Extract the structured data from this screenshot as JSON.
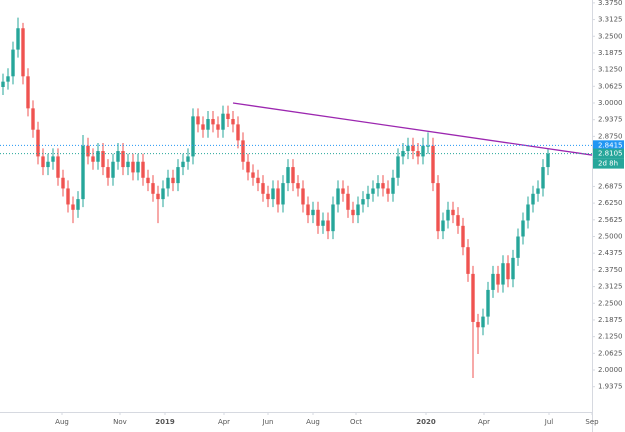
{
  "chart_data": {
    "type": "candlestick",
    "open": [
      3.06,
      3.08,
      3.1,
      3.2,
      3.28,
      3.1,
      2.98,
      2.9,
      2.8,
      2.76,
      2.78,
      2.8,
      2.72,
      2.68,
      2.62,
      2.6,
      2.64,
      2.84,
      2.8,
      2.78,
      2.82,
      2.76,
      2.72,
      2.78,
      2.82,
      2.76,
      2.78,
      2.74,
      2.78,
      2.72,
      2.7,
      2.66,
      2.64,
      2.68,
      2.72,
      2.7,
      2.76,
      2.78,
      2.8,
      2.95,
      2.92,
      2.9,
      2.94,
      2.92,
      2.9,
      2.96,
      2.94,
      2.92,
      2.86,
      2.78,
      2.74,
      2.72,
      2.7,
      2.66,
      2.64,
      2.68,
      2.62,
      2.7,
      2.76,
      2.7,
      2.68,
      2.62,
      2.58,
      2.6,
      2.54,
      2.56,
      2.52,
      2.62,
      2.68,
      2.66,
      2.6,
      2.58,
      2.62,
      2.64,
      2.66,
      2.68,
      2.7,
      2.68,
      2.66,
      2.72,
      2.8,
      2.82,
      2.84,
      2.82,
      2.8,
      2.84,
      2.84,
      2.7,
      2.52,
      2.56,
      2.6,
      2.58,
      2.54,
      2.46,
      2.36,
      2.18,
      2.16,
      2.2,
      2.3,
      2.36,
      2.32,
      2.4,
      2.34,
      2.42,
      2.5,
      2.56,
      2.62,
      2.66,
      2.68,
      2.76
    ],
    "high": [
      3.11,
      3.13,
      3.23,
      3.32,
      3.3,
      3.13,
      3.01,
      2.93,
      2.83,
      2.81,
      2.83,
      2.83,
      2.75,
      2.71,
      2.65,
      2.67,
      2.88,
      2.87,
      2.83,
      2.85,
      2.85,
      2.79,
      2.81,
      2.85,
      2.85,
      2.81,
      2.81,
      2.81,
      2.81,
      2.75,
      2.73,
      2.69,
      2.71,
      2.75,
      2.75,
      2.79,
      2.81,
      2.83,
      2.98,
      2.98,
      2.95,
      2.97,
      2.97,
      2.95,
      2.99,
      2.99,
      2.97,
      2.95,
      2.89,
      2.81,
      2.77,
      2.75,
      2.73,
      2.69,
      2.71,
      2.71,
      2.73,
      2.79,
      2.79,
      2.73,
      2.71,
      2.65,
      2.63,
      2.63,
      2.59,
      2.59,
      2.65,
      2.71,
      2.71,
      2.69,
      2.63,
      2.65,
      2.67,
      2.69,
      2.71,
      2.73,
      2.73,
      2.71,
      2.75,
      2.83,
      2.85,
      2.87,
      2.87,
      2.85,
      2.87,
      2.89,
      2.87,
      2.73,
      2.59,
      2.63,
      2.63,
      2.61,
      2.57,
      2.49,
      2.39,
      2.21,
      2.23,
      2.33,
      2.39,
      2.39,
      2.43,
      2.43,
      2.45,
      2.53,
      2.59,
      2.65,
      2.69,
      2.71,
      2.79,
      2.83
    ],
    "low": [
      3.03,
      3.05,
      3.07,
      3.17,
      3.07,
      2.95,
      2.87,
      2.77,
      2.73,
      2.73,
      2.75,
      2.69,
      2.65,
      2.59,
      2.55,
      2.57,
      2.61,
      2.77,
      2.75,
      2.75,
      2.73,
      2.69,
      2.69,
      2.75,
      2.73,
      2.73,
      2.71,
      2.71,
      2.69,
      2.67,
      2.63,
      2.55,
      2.61,
      2.65,
      2.67,
      2.67,
      2.73,
      2.75,
      2.77,
      2.89,
      2.87,
      2.87,
      2.89,
      2.87,
      2.87,
      2.91,
      2.89,
      2.83,
      2.75,
      2.71,
      2.69,
      2.67,
      2.63,
      2.61,
      2.61,
      2.59,
      2.59,
      2.67,
      2.67,
      2.65,
      2.59,
      2.55,
      2.55,
      2.51,
      2.51,
      2.49,
      2.49,
      2.59,
      2.63,
      2.57,
      2.55,
      2.55,
      2.59,
      2.61,
      2.63,
      2.65,
      2.65,
      2.63,
      2.63,
      2.69,
      2.77,
      2.79,
      2.79,
      2.77,
      2.77,
      2.81,
      2.67,
      2.49,
      2.49,
      2.53,
      2.55,
      2.51,
      2.43,
      2.33,
      1.97,
      2.06,
      2.13,
      2.17,
      2.27,
      2.29,
      2.29,
      2.31,
      2.31,
      2.39,
      2.47,
      2.53,
      2.59,
      2.63,
      2.65,
      2.73
    ],
    "close": [
      3.08,
      3.1,
      3.2,
      3.28,
      3.1,
      2.98,
      2.9,
      2.8,
      2.76,
      2.78,
      2.8,
      2.72,
      2.68,
      2.62,
      2.6,
      2.64,
      2.84,
      2.8,
      2.78,
      2.82,
      2.76,
      2.72,
      2.78,
      2.82,
      2.76,
      2.78,
      2.74,
      2.78,
      2.72,
      2.7,
      2.66,
      2.64,
      2.68,
      2.72,
      2.7,
      2.76,
      2.78,
      2.8,
      2.95,
      2.92,
      2.9,
      2.94,
      2.92,
      2.9,
      2.96,
      2.94,
      2.92,
      2.86,
      2.78,
      2.74,
      2.72,
      2.7,
      2.66,
      2.64,
      2.68,
      2.62,
      2.7,
      2.76,
      2.7,
      2.68,
      2.62,
      2.58,
      2.6,
      2.54,
      2.56,
      2.52,
      2.62,
      2.68,
      2.66,
      2.6,
      2.58,
      2.62,
      2.64,
      2.66,
      2.68,
      2.7,
      2.68,
      2.66,
      2.72,
      2.8,
      2.82,
      2.84,
      2.82,
      2.8,
      2.84,
      2.84,
      2.7,
      2.52,
      2.56,
      2.6,
      2.58,
      2.54,
      2.46,
      2.36,
      2.18,
      2.16,
      2.2,
      2.3,
      2.36,
      2.32,
      2.4,
      2.34,
      2.42,
      2.5,
      2.56,
      2.62,
      2.66,
      2.68,
      2.76,
      2.8105
    ],
    "up_color": "#26a69a",
    "down_color": "#ef5350",
    "xlim": [
      -0.6,
      117.8
    ],
    "xticks": [
      {
        "value": 11.8,
        "label": "Aug"
      },
      {
        "value": 23.4,
        "label": "Nov"
      },
      {
        "value": 32.4,
        "label": "2019",
        "bold": true
      },
      {
        "value": 44.2,
        "label": "Apr"
      },
      {
        "value": 53,
        "label": "Jun"
      },
      {
        "value": 62,
        "label": "Aug"
      },
      {
        "value": 70.6,
        "label": "Oct"
      },
      {
        "value": 84.6,
        "label": "2020",
        "bold": true
      },
      {
        "value": 96.2,
        "label": "Apr"
      },
      {
        "value": 109.2,
        "label": "Jul"
      },
      {
        "value": 117.8,
        "label": "Sep"
      }
    ],
    "ylim": [
      1.8427,
      3.3858
    ],
    "yticks": [
      {
        "value": 1.9375,
        "label": "1.9375"
      },
      {
        "value": 2.0,
        "label": "2.0000"
      },
      {
        "value": 2.0625,
        "label": "2.0625"
      },
      {
        "value": 2.125,
        "label": "2.1250"
      },
      {
        "value": 2.1875,
        "label": "2.1875"
      },
      {
        "value": 2.25,
        "label": "2.2500"
      },
      {
        "value": 2.3125,
        "label": "2.3125"
      },
      {
        "value": 2.375,
        "label": "2.3750"
      },
      {
        "value": 2.4375,
        "label": "2.4375"
      },
      {
        "value": 2.5,
        "label": "2.5000"
      },
      {
        "value": 2.5625,
        "label": "2.5625"
      },
      {
        "value": 2.625,
        "label": "2.6250"
      },
      {
        "value": 2.6875,
        "label": "2.6875"
      },
      {
        "value": 2.875,
        "label": "2.8750"
      },
      {
        "value": 2.9375,
        "label": "2.9375"
      },
      {
        "value": 3.0,
        "label": "3.0000"
      },
      {
        "value": 3.0625,
        "label": "3.0625"
      },
      {
        "value": 3.125,
        "label": "3.1250"
      },
      {
        "value": 3.1875,
        "label": "3.1875"
      },
      {
        "value": 3.25,
        "label": "3.2500"
      },
      {
        "value": 3.3125,
        "label": "3.3125"
      },
      {
        "value": 3.375,
        "label": "3.3750"
      }
    ],
    "grid": false,
    "trend_line": {
      "x": [
        46,
        117.8
      ],
      "values": [
        3.0,
        2.805
      ],
      "color": "#9c27b0"
    },
    "price_lines": [
      {
        "value": 2.8415,
        "color": "#2196f3"
      },
      {
        "value": 2.8105,
        "color": "#26a69a"
      }
    ],
    "countdown": "2d 8h"
  }
}
